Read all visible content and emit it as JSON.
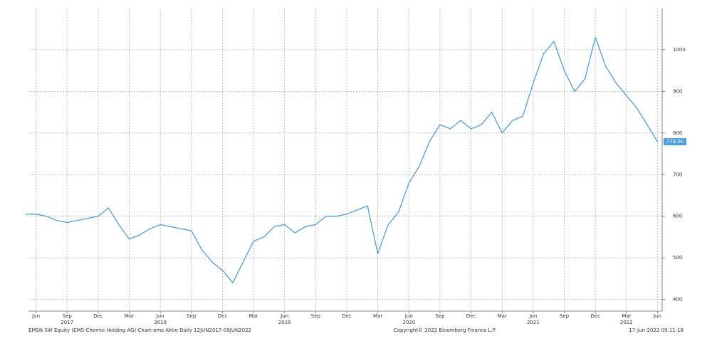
{
  "chart_data": {
    "type": "line",
    "x": [
      "2017-05",
      "2017-06",
      "2017-07",
      "2017-08",
      "2017-09",
      "2017-10",
      "2017-11",
      "2017-12",
      "2018-01",
      "2018-02",
      "2018-03",
      "2018-04",
      "2018-05",
      "2018-06",
      "2018-07",
      "2018-08",
      "2018-09",
      "2018-10",
      "2018-11",
      "2018-12",
      "2019-01",
      "2019-02",
      "2019-03",
      "2019-04",
      "2019-05",
      "2019-06",
      "2019-07",
      "2019-08",
      "2019-09",
      "2019-10",
      "2019-11",
      "2019-12",
      "2020-01",
      "2020-02",
      "2020-03",
      "2020-04",
      "2020-05",
      "2020-06",
      "2020-07",
      "2020-08",
      "2020-09",
      "2020-10",
      "2020-11",
      "2020-12",
      "2021-01",
      "2021-02",
      "2021-03",
      "2021-04",
      "2021-05",
      "2021-06",
      "2021-07",
      "2021-08",
      "2021-09",
      "2021-10",
      "2021-11",
      "2021-12",
      "2022-01",
      "2022-02",
      "2022-03",
      "2022-04",
      "2022-05",
      "2022-06"
    ],
    "series": [
      {
        "name": "EMSN SW Equity",
        "color": "#4a9fe0",
        "values": [
          605,
          605,
          600,
          590,
          585,
          590,
          595,
          600,
          620,
          580,
          545,
          555,
          570,
          580,
          575,
          570,
          565,
          520,
          490,
          470,
          440,
          490,
          540,
          550,
          575,
          580,
          560,
          575,
          580,
          600,
          600,
          605,
          615,
          625,
          510,
          580,
          610,
          680,
          720,
          780,
          820,
          810,
          830,
          810,
          820,
          850,
          800,
          830,
          840,
          920,
          990,
          1020,
          950,
          900,
          930,
          1030,
          960,
          920,
          890,
          860,
          820,
          779
        ]
      }
    ],
    "last_label": {
      "value": 779,
      "label": "779.00"
    },
    "xlim": [
      "2017-05",
      "2022-07"
    ],
    "xticks": [
      {
        "value": "2017-06",
        "label": "Jun"
      },
      {
        "value": "2017-09",
        "label": "Sep"
      },
      {
        "value": "2017-12",
        "label": "Dec"
      },
      {
        "value": "2018-03",
        "label": "Mar"
      },
      {
        "value": "2018-06",
        "label": "Jun"
      },
      {
        "value": "2018-09",
        "label": "Sep"
      },
      {
        "value": "2018-12",
        "label": "Dec"
      },
      {
        "value": "2019-03",
        "label": "Mar"
      },
      {
        "value": "2019-06",
        "label": "Jun"
      },
      {
        "value": "2019-09",
        "label": "Sep"
      },
      {
        "value": "2019-12",
        "label": "Dec"
      },
      {
        "value": "2020-03",
        "label": "Mar"
      },
      {
        "value": "2020-06",
        "label": "Jun"
      },
      {
        "value": "2020-09",
        "label": "Sep"
      },
      {
        "value": "2020-12",
        "label": "Dec"
      },
      {
        "value": "2021-03",
        "label": "Mar"
      },
      {
        "value": "2021-06",
        "label": "Jun"
      },
      {
        "value": "2021-09",
        "label": "Sep"
      },
      {
        "value": "2021-12",
        "label": "Dec"
      },
      {
        "value": "2022-03",
        "label": "Mar"
      },
      {
        "value": "2022-06",
        "label": "Jun"
      }
    ],
    "year_ticks": [
      {
        "value": "2017-09",
        "label": "2017"
      },
      {
        "value": "2018-06",
        "label": "2018"
      },
      {
        "value": "2019-06",
        "label": "2019"
      },
      {
        "value": "2020-06",
        "label": "2020"
      },
      {
        "value": "2021-06",
        "label": "2021"
      },
      {
        "value": "2022-03",
        "label": "2022"
      }
    ],
    "ylim": [
      372,
      1099
    ],
    "yticks": [
      400,
      500,
      600,
      700,
      800,
      900,
      1000
    ],
    "grid": true,
    "footer_left": "EMSN SW Equity (EMS-Chemie Holding AG) Chart-ems Aktie Daily 12JUN2017-09JUN2022",
    "footer_center": "Copyright© 2022 Bloomberg Finance L.P.",
    "footer_right": "17-Jun-2022 09:11:18"
  }
}
